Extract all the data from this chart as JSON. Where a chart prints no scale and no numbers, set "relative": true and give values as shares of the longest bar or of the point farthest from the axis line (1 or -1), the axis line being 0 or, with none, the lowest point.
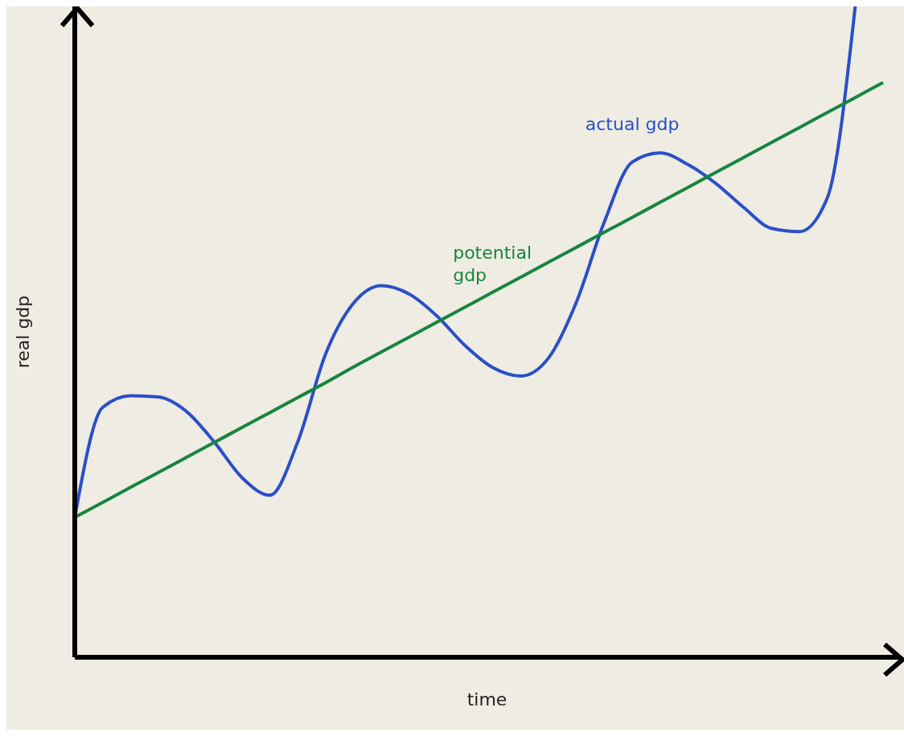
{
  "chart_data": {
    "type": "line",
    "relative": true,
    "xlabel": "time",
    "ylabel": "real gdp",
    "legend": false,
    "grid": false,
    "marker": "none",
    "line_style": "solid",
    "categories": [
      null,
      null,
      null,
      null,
      null,
      null,
      null,
      null,
      null,
      null,
      null,
      null,
      null,
      null,
      null,
      null,
      null,
      null,
      null,
      null,
      null,
      null,
      null,
      null,
      null,
      null,
      null,
      null,
      null,
      null
    ],
    "series": [
      {
        "name": "actual gdp",
        "color": "#2b4fc7",
        "values": [
          0.215,
          0.384,
          0.402,
          0.4,
          0.378,
          0.331,
          0.276,
          0.249,
          0.331,
          0.466,
          0.544,
          0.571,
          0.558,
          0.524,
          0.479,
          0.445,
          0.432,
          0.46,
          0.546,
          0.669,
          0.761,
          0.775,
          0.757,
          0.728,
          0.691,
          0.659,
          0.654,
          0.706,
          1.0,
          null
        ]
      },
      {
        "name": "potential gdp",
        "color": "#17853f",
        "values": [
          0.215,
          0.238,
          0.261,
          0.284,
          0.307,
          0.33,
          0.353,
          0.376,
          0.399,
          0.422,
          0.446,
          0.469,
          0.492,
          0.515,
          0.538,
          0.561,
          0.584,
          0.607,
          0.63,
          0.653,
          0.676,
          0.699,
          0.722,
          0.745,
          0.768,
          0.791,
          0.814,
          0.837,
          0.86,
          0.883
        ]
      }
    ]
  }
}
